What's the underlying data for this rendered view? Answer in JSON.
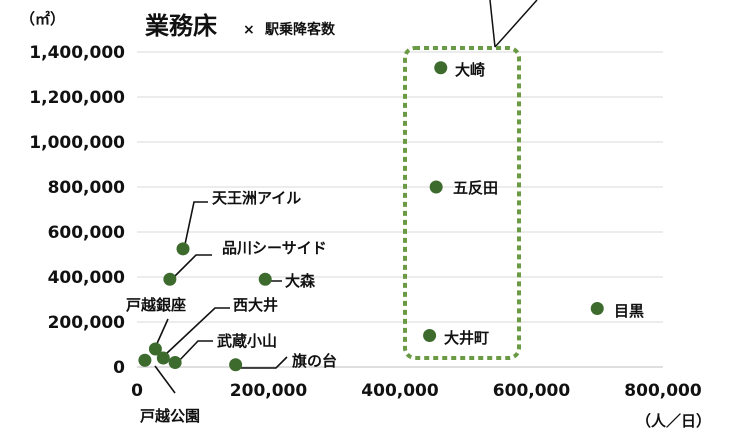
{
  "chart_data": {
    "type": "scatter",
    "title": "業務床",
    "title_sep": "×",
    "subtitle": "駅乗降客数",
    "ylabel": "（㎡）",
    "xlabel": "（人／日）",
    "xlim": [
      0,
      800000
    ],
    "ylim": [
      0,
      1400000
    ],
    "x_ticks": [
      0,
      200000,
      400000,
      600000,
      800000
    ],
    "x_tick_labels": [
      "0",
      "200,000",
      "400,000",
      "600,000",
      "800,000"
    ],
    "y_ticks": [
      0,
      200000,
      400000,
      600000,
      800000,
      1000000,
      1200000,
      1400000
    ],
    "y_tick_labels": [
      "0",
      "200,000",
      "400,000",
      "600,000",
      "800,000",
      "1,000,000",
      "1,200,000",
      "1,400,000"
    ],
    "grid": "horizontal",
    "marker_color": "#3d6b2e",
    "highlight_box_color": "#6a9a44",
    "points": [
      {
        "label": "大崎",
        "x": 462000,
        "y": 1330000
      },
      {
        "label": "五反田",
        "x": 455000,
        "y": 800000
      },
      {
        "label": "大井町",
        "x": 445000,
        "y": 140000
      },
      {
        "label": "目黒",
        "x": 700000,
        "y": 260000
      },
      {
        "label": "大森",
        "x": 195000,
        "y": 390000
      },
      {
        "label": "天王洲アイル",
        "x": 70000,
        "y": 525000
      },
      {
        "label": "品川シーサイド",
        "x": 50000,
        "y": 390000
      },
      {
        "label": "戸越銀座",
        "x": 28000,
        "y": 80000
      },
      {
        "label": "西大井",
        "x": 40000,
        "y": 40000
      },
      {
        "label": "武蔵小山",
        "x": 58000,
        "y": 20000
      },
      {
        "label": "旗の台",
        "x": 150000,
        "y": 10000
      },
      {
        "label": "戸越公園",
        "x": 12000,
        "y": 30000
      }
    ],
    "highlighted": [
      "大崎",
      "五反田",
      "大井町"
    ]
  }
}
